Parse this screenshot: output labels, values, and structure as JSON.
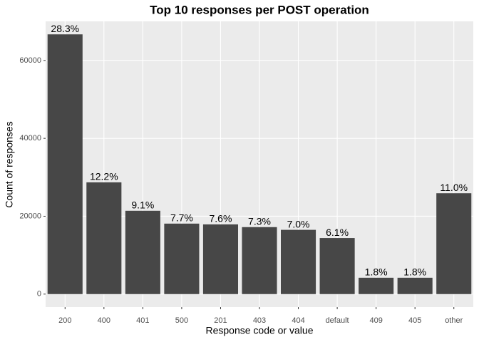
{
  "chart_data": {
    "type": "bar",
    "title": "Top 10 responses per POST operation",
    "x_label": "Response code or value",
    "y_label": "Count of responses",
    "categories": [
      "200",
      "400",
      "401",
      "500",
      "201",
      "403",
      "404",
      "default",
      "409",
      "405",
      "other"
    ],
    "values": [
      66700,
      28700,
      21400,
      18100,
      17900,
      17200,
      16500,
      14400,
      4200,
      4200,
      25900
    ],
    "value_labels": [
      "28.3%",
      "12.2%",
      "9.1%",
      "7.7%",
      "7.6%",
      "7.3%",
      "7.0%",
      "6.1%",
      "1.8%",
      "1.8%",
      "11.0%"
    ],
    "color": "#474747",
    "ylim": [
      -3335,
      70035
    ],
    "yticks": [
      0,
      20000,
      40000,
      60000
    ],
    "grid": true
  }
}
